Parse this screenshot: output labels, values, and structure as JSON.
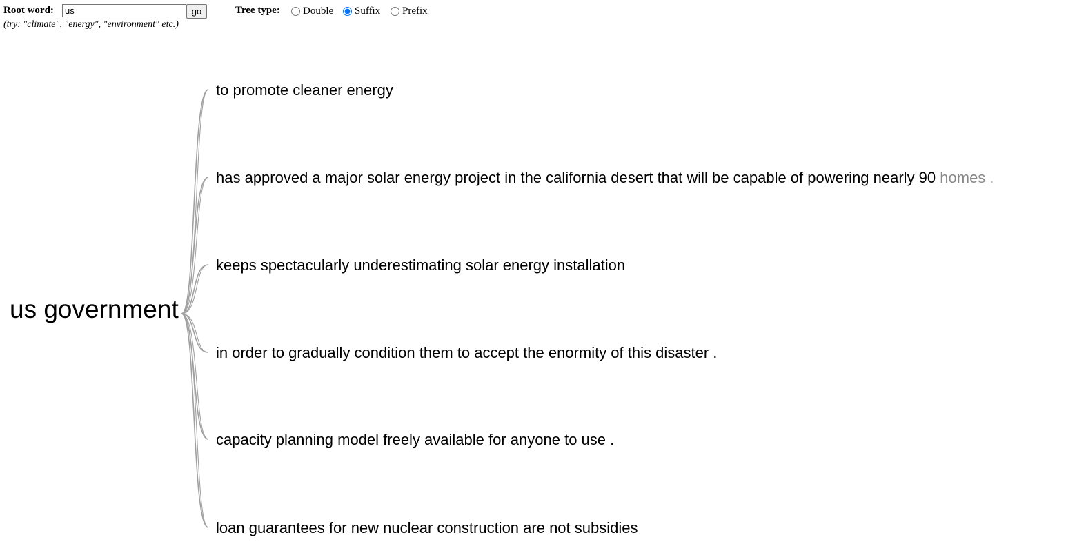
{
  "controls": {
    "root_label": "Root word:",
    "root_value": "us",
    "go_label": "go",
    "hint": "(try: \"climate\", \"energy\", \"environment\" etc.)",
    "tree_type_label": "Tree type:",
    "options": [
      {
        "label": "Double",
        "checked": false
      },
      {
        "label": "Suffix",
        "checked": true
      },
      {
        "label": "Prefix",
        "checked": false
      }
    ]
  },
  "tree": {
    "root": "us government",
    "branches": [
      {
        "text": "to promote cleaner energy"
      },
      {
        "text": "has approved a major solar energy project in the california desert that will be capable of powering nearly 90",
        "fade1": " homes",
        "fade2": " ."
      },
      {
        "text": "keeps spectacularly underestimating solar energy installation"
      },
      {
        "text": "in order to gradually condition them to accept the enormity of this disaster ."
      },
      {
        "text": "capacity planning model freely available for anyone to use ."
      },
      {
        "text": "loan guarantees for new nuclear construction are not subsidies"
      }
    ],
    "link_color": "#a0a0a0"
  }
}
